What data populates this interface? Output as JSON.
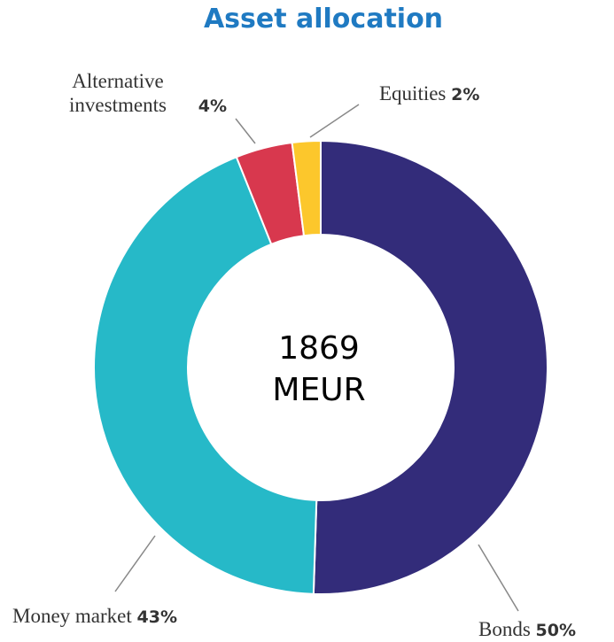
{
  "chart_data": {
    "type": "pie",
    "title": "Asset allocation",
    "categories": [
      "Bonds",
      "Money market",
      "Alternative investments",
      "Equities"
    ],
    "values": [
      50,
      43,
      4,
      2
    ],
    "value_labels": [
      "50%",
      "43%",
      "4%",
      "2%"
    ],
    "colors": [
      "#332c7a",
      "#26b9c8",
      "#d8384e",
      "#fcc72c"
    ],
    "center_label": [
      "1869",
      "MEUR"
    ]
  }
}
